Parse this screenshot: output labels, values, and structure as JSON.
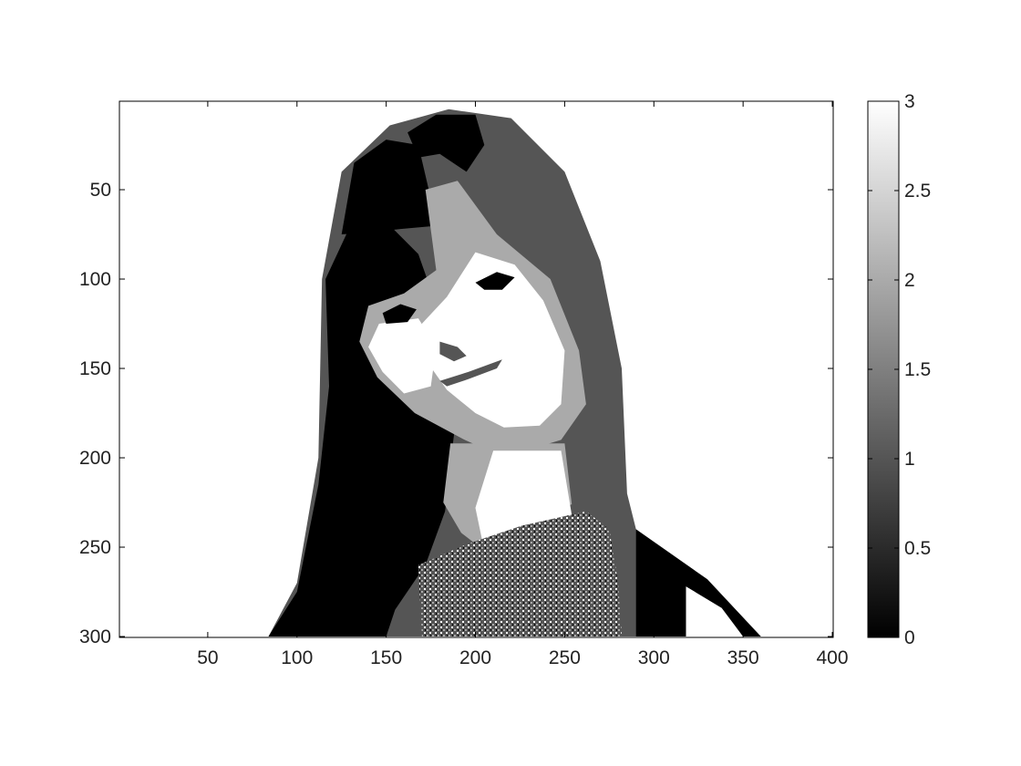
{
  "chart_data": {
    "type": "heatmap",
    "title": "",
    "xlabel": "",
    "ylabel": "",
    "xlim": [
      0.5,
      400.5
    ],
    "ylim": [
      300.5,
      0.5
    ],
    "y_direction": "reverse",
    "x_ticks": [
      50,
      100,
      150,
      200,
      250,
      300,
      350,
      400
    ],
    "y_ticks": [
      50,
      100,
      150,
      200,
      250,
      300
    ],
    "x_tick_labels": [
      "50",
      "100",
      "150",
      "200",
      "250",
      "300",
      "350",
      "400"
    ],
    "y_tick_labels": [
      "50",
      "100",
      "150",
      "200",
      "250",
      "300"
    ],
    "grid": false,
    "colormap": "gray",
    "color_levels": [
      {
        "value": 0,
        "color": "#000000"
      },
      {
        "value": 1,
        "color": "#555555"
      },
      {
        "value": 2,
        "color": "#aaaaaa"
      },
      {
        "value": 3,
        "color": "#ffffff"
      }
    ],
    "colorbar": {
      "position": "right",
      "range": [
        0,
        3
      ],
      "ticks": [
        0,
        0.5,
        1,
        1.5,
        2,
        2.5,
        3
      ],
      "tick_labels": [
        "0",
        "0.5",
        "1",
        "1.5",
        "2",
        "2.5",
        "3"
      ]
    },
    "image_regions": [
      {
        "name": "hair-mass",
        "value": 1,
        "points": [
          [
            84,
            300
          ],
          [
            100,
            270
          ],
          [
            112,
            200
          ],
          [
            114,
            100
          ],
          [
            125,
            40
          ],
          [
            152,
            14
          ],
          [
            185,
            5
          ],
          [
            220,
            10
          ],
          [
            250,
            40
          ],
          [
            270,
            90
          ],
          [
            282,
            150
          ],
          [
            285,
            220
          ],
          [
            290,
            240
          ],
          [
            330,
            270
          ],
          [
            360,
            300
          ]
        ]
      },
      {
        "name": "hair-shadow-left",
        "value": 0,
        "points": [
          [
            84,
            300
          ],
          [
            100,
            275
          ],
          [
            112,
            215
          ],
          [
            118,
            160
          ],
          [
            116,
            100
          ],
          [
            130,
            70
          ],
          [
            152,
            70
          ],
          [
            168,
            86
          ],
          [
            180,
            120
          ],
          [
            190,
            170
          ],
          [
            183,
            230
          ],
          [
            172,
            260
          ],
          [
            155,
            285
          ],
          [
            150,
            300
          ]
        ]
      },
      {
        "name": "bangs-dark",
        "value": 0,
        "points": [
          [
            125,
            75
          ],
          [
            132,
            35
          ],
          [
            150,
            22
          ],
          [
            168,
            25
          ],
          [
            175,
            55
          ],
          [
            180,
            70
          ],
          [
            158,
            72
          ],
          [
            140,
            74
          ]
        ]
      },
      {
        "name": "crown-dark",
        "value": 0,
        "points": [
          [
            162,
            18
          ],
          [
            178,
            8
          ],
          [
            200,
            8
          ],
          [
            205,
            25
          ],
          [
            195,
            40
          ],
          [
            180,
            30
          ],
          [
            168,
            32
          ]
        ]
      },
      {
        "name": "face-skin",
        "value": 2,
        "points": [
          [
            172,
            50
          ],
          [
            190,
            45
          ],
          [
            212,
            75
          ],
          [
            242,
            100
          ],
          [
            258,
            140
          ],
          [
            262,
            170
          ],
          [
            248,
            190
          ],
          [
            228,
            196
          ],
          [
            212,
            198
          ],
          [
            194,
            190
          ],
          [
            166,
            175
          ],
          [
            145,
            155
          ],
          [
            135,
            135
          ],
          [
            140,
            115
          ],
          [
            160,
            108
          ],
          [
            178,
            95
          ]
        ]
      },
      {
        "name": "face-highlight",
        "value": 3,
        "points": [
          [
            200,
            85
          ],
          [
            222,
            92
          ],
          [
            238,
            112
          ],
          [
            250,
            140
          ],
          [
            248,
            170
          ],
          [
            236,
            182
          ],
          [
            216,
            183
          ],
          [
            200,
            175
          ],
          [
            184,
            162
          ],
          [
            172,
            145
          ],
          [
            170,
            125
          ],
          [
            184,
            110
          ]
        ]
      },
      {
        "name": "cheek-highlight",
        "value": 3,
        "points": [
          [
            146,
            125
          ],
          [
            168,
            122
          ],
          [
            178,
            138
          ],
          [
            175,
            160
          ],
          [
            160,
            164
          ],
          [
            148,
            152
          ],
          [
            140,
            138
          ]
        ]
      },
      {
        "name": "neck-shade",
        "value": 2,
        "points": [
          [
            186,
            192
          ],
          [
            250,
            192
          ],
          [
            254,
            226
          ],
          [
            240,
            232
          ],
          [
            205,
            252
          ],
          [
            192,
            242
          ],
          [
            182,
            225
          ]
        ]
      },
      {
        "name": "neck-light",
        "value": 3,
        "points": [
          [
            210,
            196
          ],
          [
            248,
            196
          ],
          [
            254,
            232
          ],
          [
            232,
            240
          ],
          [
            205,
            252
          ],
          [
            200,
            228
          ]
        ]
      },
      {
        "name": "collar-texture",
        "value": 0,
        "points": [
          [
            168,
            260
          ],
          [
            196,
            248
          ],
          [
            226,
            238
          ],
          [
            262,
            230
          ],
          [
            275,
            240
          ],
          [
            280,
            270
          ],
          [
            282,
            300
          ],
          [
            170,
            300
          ]
        ]
      },
      {
        "name": "shoulder-right",
        "value": 0,
        "points": [
          [
            290,
            240
          ],
          [
            330,
            268
          ],
          [
            360,
            300
          ],
          [
            290,
            300
          ]
        ]
      },
      {
        "name": "shoulder-right-light",
        "value": 3,
        "points": [
          [
            318,
            272
          ],
          [
            338,
            284
          ],
          [
            350,
            300
          ],
          [
            318,
            300
          ]
        ]
      },
      {
        "name": "left-eye",
        "value": 0,
        "points": [
          [
            148,
            119
          ],
          [
            158,
            114
          ],
          [
            167,
            117
          ],
          [
            162,
            124
          ],
          [
            150,
            125
          ]
        ]
      },
      {
        "name": "right-eye",
        "value": 0,
        "points": [
          [
            200,
            102
          ],
          [
            212,
            96
          ],
          [
            222,
            99
          ],
          [
            215,
            106
          ],
          [
            205,
            106
          ]
        ]
      },
      {
        "name": "mouth",
        "value": 1,
        "points": [
          [
            180,
            157
          ],
          [
            196,
            152
          ],
          [
            215,
            145
          ],
          [
            212,
            150
          ],
          [
            196,
            156
          ],
          [
            184,
            160
          ]
        ]
      },
      {
        "name": "nose",
        "value": 1,
        "points": [
          [
            180,
            135
          ],
          [
            190,
            138
          ],
          [
            195,
            143
          ],
          [
            188,
            146
          ],
          [
            180,
            142
          ]
        ]
      }
    ]
  }
}
